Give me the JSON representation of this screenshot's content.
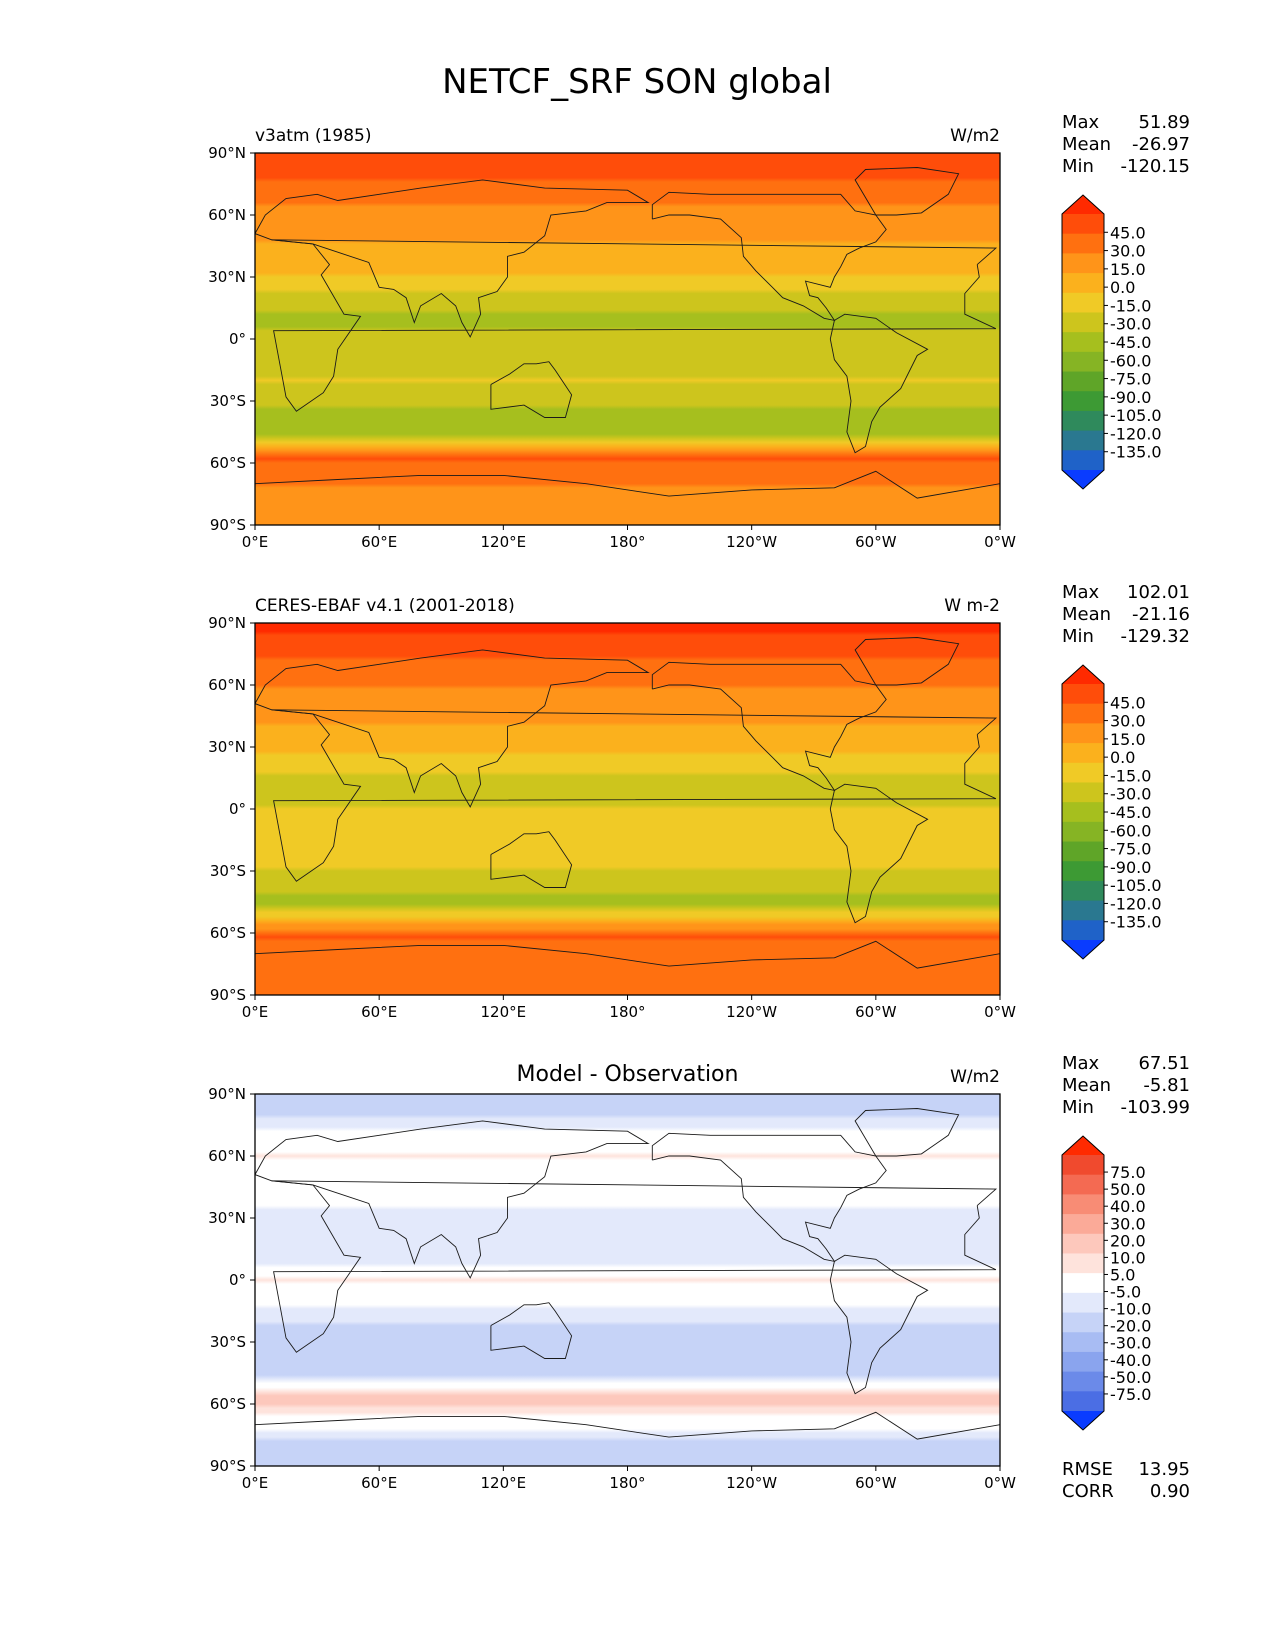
{
  "chart_data": {
    "type": "heatmap",
    "title": "NETCF_SRF SON global",
    "x_ticks": [
      "0°E",
      "60°E",
      "120°E",
      "180°",
      "120°W",
      "60°W",
      "0°W"
    ],
    "y_ticks": [
      "90°N",
      "60°N",
      "30°N",
      "0°",
      "30°S",
      "60°S",
      "90°S"
    ],
    "xlim": [
      0,
      360
    ],
    "ylim": [
      -90,
      90
    ],
    "panels": [
      {
        "left_label": "v3atm (1985)",
        "center_label": "",
        "units": "W/m2",
        "stats": [
          {
            "label": "Max",
            "value": "51.89"
          },
          {
            "label": "Mean",
            "value": "-26.97"
          },
          {
            "label": "Min",
            "value": "-120.15"
          }
        ],
        "colorbar_ticks": [
          "45.0",
          "30.0",
          "15.0",
          "0.0",
          "-15.0",
          "-30.0",
          "-45.0",
          "-60.0",
          "-75.0",
          "-90.0",
          "-105.0",
          "-120.0",
          "-135.0"
        ],
        "colorbar_colors": [
          "#ff2a00",
          "#ff4d0a",
          "#ff7010",
          "#ff9419",
          "#fbb11d",
          "#f0ca26",
          "#cdc51d",
          "#a6bf1e",
          "#86b424",
          "#5fa528",
          "#3d9a34",
          "#2f8a5c",
          "#2a7890",
          "#1f62c8",
          "#0a3cff"
        ],
        "approx_zonal_profile": [
          {
            "lat": 85,
            "value": 40
          },
          {
            "lat": 60,
            "value": 10
          },
          {
            "lat": 35,
            "value": -10
          },
          {
            "lat": 10,
            "value": -50
          },
          {
            "lat": 0,
            "value": -40
          },
          {
            "lat": -20,
            "value": -30
          },
          {
            "lat": -45,
            "value": -60
          },
          {
            "lat": -58,
            "value": 30
          },
          {
            "lat": -80,
            "value": 5
          }
        ]
      },
      {
        "left_label": "CERES-EBAF v4.1 (2001-2018)",
        "center_label": "",
        "units": "W m-2",
        "stats": [
          {
            "label": "Max",
            "value": "102.01"
          },
          {
            "label": "Mean",
            "value": "-21.16"
          },
          {
            "label": "Min",
            "value": "-129.32"
          }
        ],
        "colorbar_ticks": [
          "45.0",
          "30.0",
          "15.0",
          "0.0",
          "-15.0",
          "-30.0",
          "-45.0",
          "-60.0",
          "-75.0",
          "-90.0",
          "-105.0",
          "-120.0",
          "-135.0"
        ],
        "colorbar_colors": [
          "#ff2a00",
          "#ff4d0a",
          "#ff7010",
          "#ff9419",
          "#fbb11d",
          "#f0ca26",
          "#cdc51d",
          "#a6bf1e",
          "#86b424",
          "#5fa528",
          "#3d9a34",
          "#2f8a5c",
          "#2a7890",
          "#1f62c8",
          "#0a3cff"
        ],
        "approx_zonal_profile": [
          {
            "lat": 85,
            "value": 45
          },
          {
            "lat": 60,
            "value": 15
          },
          {
            "lat": 35,
            "value": -5
          },
          {
            "lat": 10,
            "value": -40
          },
          {
            "lat": 0,
            "value": -30
          },
          {
            "lat": -20,
            "value": -20
          },
          {
            "lat": -45,
            "value": -50
          },
          {
            "lat": -62,
            "value": 30
          },
          {
            "lat": -80,
            "value": 15
          }
        ]
      },
      {
        "left_label": "",
        "center_label": "Model - Observation",
        "units": "W/m2",
        "stats": [
          {
            "label": "Max",
            "value": "67.51"
          },
          {
            "label": "Mean",
            "value": "-5.81"
          },
          {
            "label": "Min",
            "value": "-103.99"
          }
        ],
        "colorbar_ticks": [
          "75.0",
          "50.0",
          "40.0",
          "30.0",
          "20.0",
          "10.0",
          "5.0",
          "-5.0",
          "-10.0",
          "-20.0",
          "-30.0",
          "-40.0",
          "-50.0",
          "-75.0"
        ],
        "colorbar_colors": [
          "#ff2a00",
          "#f04a2e",
          "#f46a52",
          "#f88c75",
          "#fbaa98",
          "#fdc8bc",
          "#fee3dc",
          "#ffffff",
          "#e3e9fb",
          "#c6d3f7",
          "#a8bcf3",
          "#8aa4ee",
          "#6b8ae9",
          "#4b6ee4",
          "#0a3cff"
        ],
        "rmse": {
          "label": "RMSE",
          "value": "13.95"
        },
        "corr": {
          "label": "CORR",
          "value": "0.90"
        },
        "approx_zonal_profile": [
          {
            "lat": 85,
            "value": -15
          },
          {
            "lat": 60,
            "value": 5
          },
          {
            "lat": 35,
            "value": -5
          },
          {
            "lat": 10,
            "value": -10
          },
          {
            "lat": 0,
            "value": 5
          },
          {
            "lat": -20,
            "value": -10
          },
          {
            "lat": -45,
            "value": -15
          },
          {
            "lat": -58,
            "value": 15
          },
          {
            "lat": -80,
            "value": -15
          }
        ]
      }
    ]
  }
}
